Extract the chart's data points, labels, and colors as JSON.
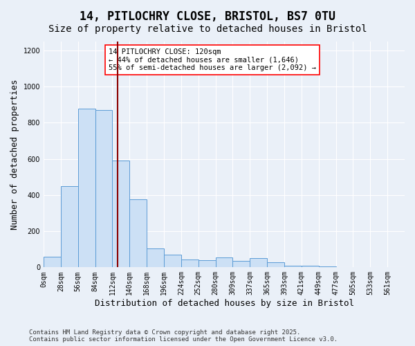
{
  "title1": "14, PITLOCHRY CLOSE, BRISTOL, BS7 0TU",
  "title2": "Size of property relative to detached houses in Bristol",
  "xlabel": "Distribution of detached houses by size in Bristol",
  "ylabel": "Number of detached properties",
  "categories": [
    "0sqm",
    "28sqm",
    "56sqm",
    "84sqm",
    "112sqm",
    "140sqm",
    "168sqm",
    "196sqm",
    "224sqm",
    "252sqm",
    "280sqm",
    "309sqm",
    "337sqm",
    "365sqm",
    "393sqm",
    "421sqm",
    "449sqm",
    "477sqm",
    "505sqm",
    "533sqm",
    "561sqm"
  ],
  "values": [
    60,
    450,
    880,
    870,
    590,
    375,
    105,
    70,
    45,
    40,
    55,
    35,
    50,
    30,
    10,
    8,
    5,
    3,
    2,
    1,
    1
  ],
  "bar_color": "#cce0f5",
  "bar_edge_color": "#5b9bd5",
  "vline_color": "#8b0000",
  "annotation_text": "14 PITLOCHRY CLOSE: 120sqm\n← 44% of detached houses are smaller (1,646)\n55% of semi-detached houses are larger (2,092) →",
  "ylim": [
    0,
    1250
  ],
  "yticks": [
    0,
    200,
    400,
    600,
    800,
    1000,
    1200
  ],
  "footnote": "Contains HM Land Registry data © Crown copyright and database right 2025.\nContains public sector information licensed under the Open Government Licence v3.0.",
  "background_color": "#eaf0f8",
  "plot_bg_color": "#eaf0f8",
  "grid_color": "#ffffff",
  "title_fontsize": 12,
  "subtitle_fontsize": 10,
  "axis_label_fontsize": 9,
  "tick_fontsize": 7,
  "annotation_fontsize": 7.5,
  "footnote_fontsize": 6.5
}
